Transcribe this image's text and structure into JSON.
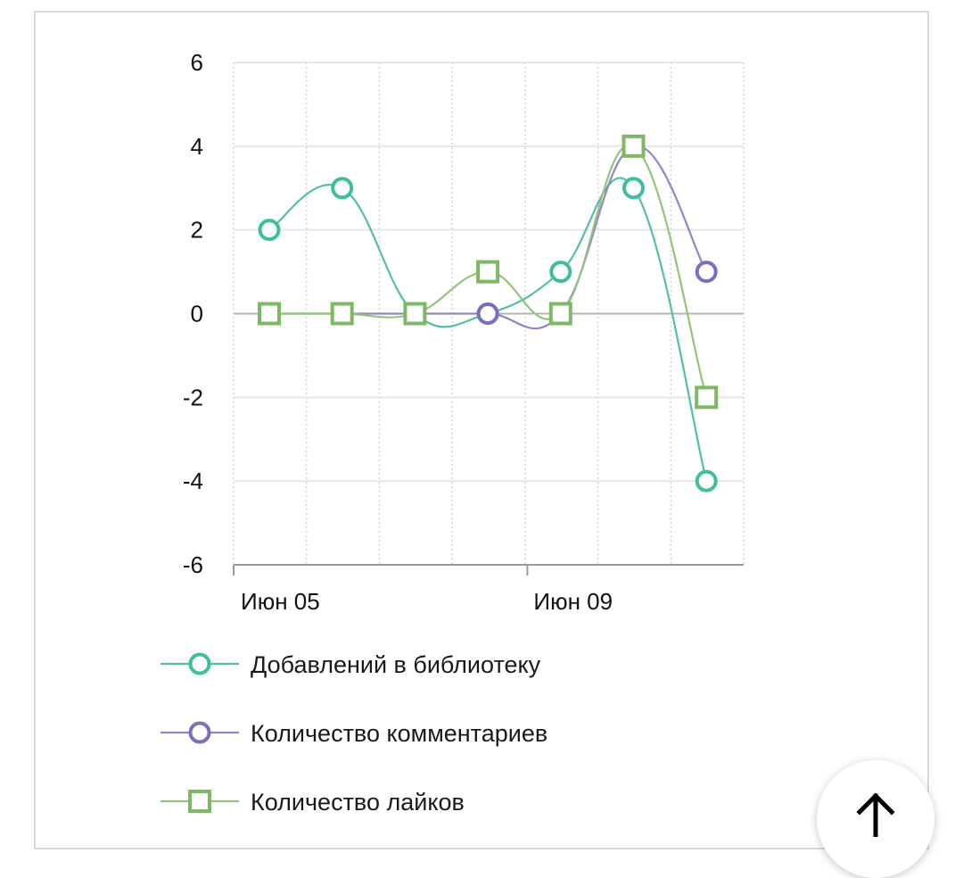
{
  "chart_data": {
    "type": "line",
    "x": [
      "2024-06-05",
      "2024-06-06",
      "2024-06-07",
      "2024-06-08",
      "2024-06-09",
      "2024-06-10",
      "2024-06-11"
    ],
    "x_tick_labels": [
      {
        "x": "2024-06-05",
        "label": "Июн 05"
      },
      {
        "x": "2024-06-09",
        "label": "Июн 09"
      }
    ],
    "ylim": [
      -6,
      6
    ],
    "yticks": [
      6,
      4,
      2,
      0,
      -2,
      -4,
      -6
    ],
    "grid": true,
    "legend_position": "bottom",
    "series": [
      {
        "name": "Добавлений в библиотеку",
        "marker": "circle",
        "color": "#3dbf9c",
        "line_color": "#52bfa6",
        "values": [
          2,
          3,
          0,
          0,
          1,
          3,
          -4
        ]
      },
      {
        "name": "Количество комментариев",
        "marker": "circle",
        "color": "#7b6fbd",
        "line_color": "#8e86c7",
        "values": [
          0,
          0,
          0,
          0,
          0,
          4,
          1
        ]
      },
      {
        "name": "Количество лайков",
        "marker": "square",
        "color": "#7fb865",
        "line_color": "#92c47c",
        "values": [
          0,
          0,
          0,
          1,
          0,
          4,
          -2
        ]
      }
    ]
  },
  "scroll_top_icon": "arrow-up-icon"
}
